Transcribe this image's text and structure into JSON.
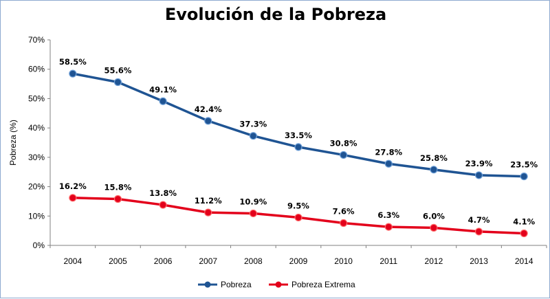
{
  "chart_data": {
    "type": "line",
    "title": "Evolución de la Pobreza",
    "xlabel": "",
    "ylabel": "Pobreza (%)",
    "categories": [
      "2004",
      "2005",
      "2006",
      "2007",
      "2008",
      "2009",
      "2010",
      "2011",
      "2012",
      "2013",
      "2014"
    ],
    "ylim": [
      0,
      70
    ],
    "yticks": [
      "0%",
      "10%",
      "20%",
      "30%",
      "40%",
      "50%",
      "60%",
      "70%"
    ],
    "grid": false,
    "legend_position": "bottom",
    "series": [
      {
        "name": "Pobreza",
        "color": "#1f5493",
        "values": [
          58.5,
          55.6,
          49.1,
          42.4,
          37.3,
          33.5,
          30.8,
          27.8,
          25.8,
          23.9,
          23.5
        ],
        "labels": [
          "58.5%",
          "55.6%",
          "49.1%",
          "42.4%",
          "37.3%",
          "33.5%",
          "30.8%",
          "27.8%",
          "25.8%",
          "23.9%",
          "23.5%"
        ]
      },
      {
        "name": "Pobreza Extrema",
        "color": "#e3001b",
        "values": [
          16.2,
          15.8,
          13.8,
          11.2,
          10.9,
          9.5,
          7.6,
          6.3,
          6.0,
          4.7,
          4.1
        ],
        "labels": [
          "16.2%",
          "15.8%",
          "13.8%",
          "11.2%",
          "10.9%",
          "9.5%",
          "7.6%",
          "6.3%",
          "6.0%",
          "4.7%",
          "4.1%"
        ]
      }
    ]
  }
}
